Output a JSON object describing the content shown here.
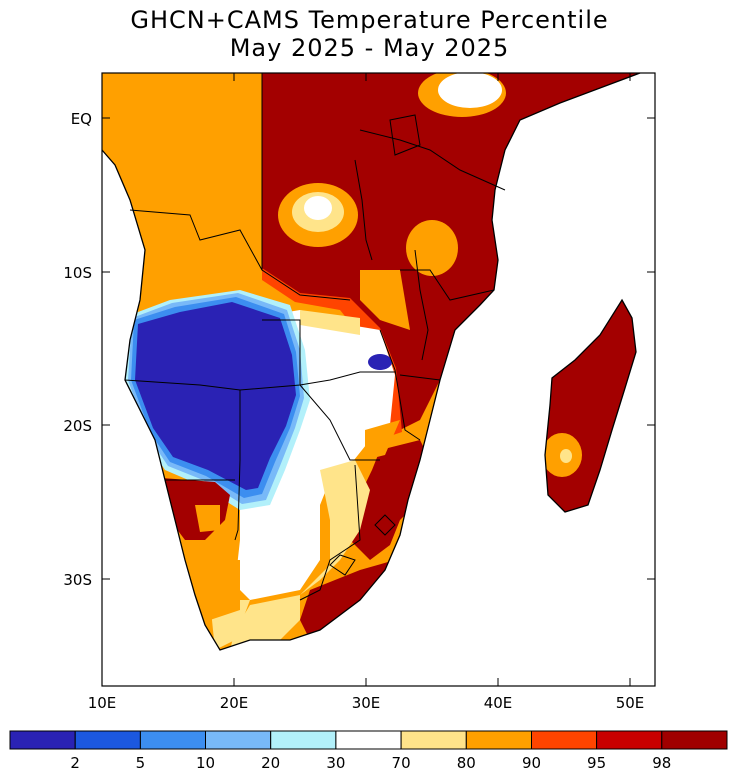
{
  "title": "GHCN+CAMS Temperature Percentile",
  "subtitle": "May 2025 - May 2025",
  "lat_labels": [
    "EQ",
    "10S",
    "20S",
    "30S"
  ],
  "lon_labels": [
    "10E",
    "20E",
    "30E",
    "40E",
    "50E"
  ],
  "legend": {
    "labels": [
      "2",
      "5",
      "10",
      "20",
      "30",
      "70",
      "80",
      "90",
      "95",
      "98"
    ],
    "colors": [
      "#2a22b4",
      "#1c58e0",
      "#3c8ef0",
      "#78b9f8",
      "#b2f0fa",
      "#ffffff",
      "#ffe48a",
      "#ffa000",
      "#ff4400",
      "#c80000",
      "#a00000"
    ]
  },
  "palette": {
    "p2": "#2a22b4",
    "p5": "#1c58e0",
    "p10": "#3c8ef0",
    "p20": "#78b9f8",
    "p30": "#b2f0fa",
    "p70": "#ffffff",
    "p80": "#ffe48a",
    "p90": "#ffa000",
    "p95": "#ff4400",
    "p98": "#a30000"
  }
}
